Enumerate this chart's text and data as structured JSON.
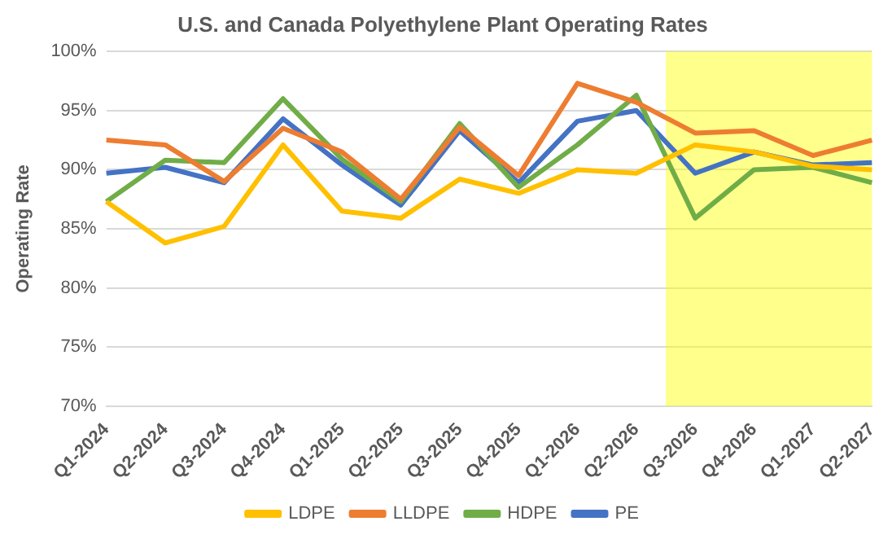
{
  "chart_data": {
    "type": "line",
    "title": "U.S. and Canada Polyethylene Plant Operating Rates",
    "ylabel": "Operating Rate",
    "categories": [
      "Q1-2024",
      "Q2-2024",
      "Q3-2024",
      "Q4-2024",
      "Q1-2025",
      "Q2-2025",
      "Q3-2025",
      "Q4-2025",
      "Q1-2026",
      "Q2-2026",
      "Q3-2026",
      "Q4-2026",
      "Q1-2027",
      "Q2-2027"
    ],
    "series": [
      {
        "name": "LDPE",
        "color": "#ffc000",
        "values": [
          87.3,
          83.8,
          85.2,
          92.1,
          86.5,
          85.9,
          89.2,
          88.0,
          90.0,
          89.7,
          92.1,
          91.5,
          90.3,
          90.0
        ]
      },
      {
        "name": "LLDPE",
        "color": "#ed7d31",
        "values": [
          92.5,
          92.1,
          89.0,
          93.5,
          91.5,
          87.5,
          93.6,
          89.5,
          97.3,
          95.7,
          93.1,
          93.3,
          91.2,
          92.5
        ]
      },
      {
        "name": "HDPE",
        "color": "#70ad47",
        "values": [
          87.3,
          90.8,
          90.6,
          96.0,
          90.9,
          87.3,
          93.9,
          88.5,
          92.1,
          96.3,
          85.9,
          90.0,
          90.2,
          88.9
        ]
      },
      {
        "name": "PE",
        "color": "#4472c4",
        "values": [
          89.7,
          90.2,
          88.9,
          94.3,
          90.4,
          87.0,
          93.3,
          88.9,
          94.1,
          95.0,
          89.7,
          91.5,
          90.4,
          90.6
        ]
      }
    ],
    "ylim": [
      70,
      100
    ],
    "yticks": [
      {
        "value": 70,
        "label": "70%"
      },
      {
        "value": 75,
        "label": "75%"
      },
      {
        "value": 80,
        "label": "80%"
      },
      {
        "value": 85,
        "label": "85%"
      },
      {
        "value": 90,
        "label": "90%"
      },
      {
        "value": 95,
        "label": "95%"
      },
      {
        "value": 100,
        "label": "100%"
      }
    ],
    "bands": [
      {
        "axis": "x",
        "from": "Q3-2026",
        "to": "Q2-2027",
        "color": "#ffff00"
      }
    ],
    "grid": "y",
    "legend": "bottom",
    "marker": "none",
    "line_style": "solid"
  }
}
